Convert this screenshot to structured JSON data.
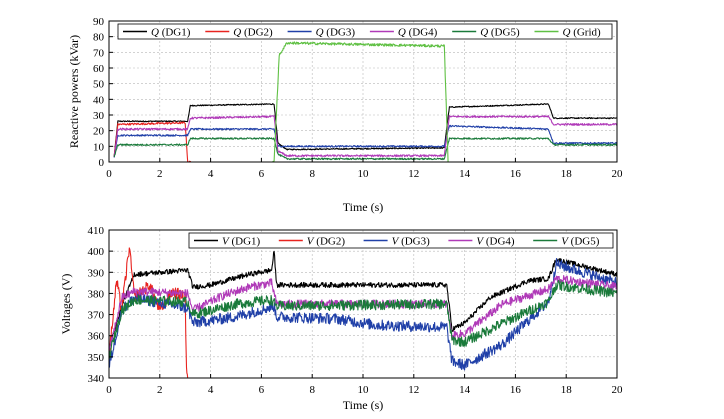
{
  "chart_data": [
    {
      "type": "line",
      "xlabel": "Time (s)",
      "ylabel": "Reactive powers (kVar)",
      "xlim": [
        0,
        20
      ],
      "ylim": [
        0,
        90
      ],
      "x_ticks": [
        0,
        2,
        4,
        6,
        8,
        10,
        12,
        14,
        16,
        18,
        20
      ],
      "y_ticks": [
        0,
        10,
        20,
        30,
        40,
        50,
        60,
        70,
        80,
        90
      ],
      "grid": true,
      "legend_position": "top",
      "series": [
        {
          "name_prefix": "Q",
          "name_suffix": "(DG1)",
          "color": "#000000",
          "points": [
            [
              0.2,
              3
            ],
            [
              0.35,
              26
            ],
            [
              3.1,
              26
            ],
            [
              3.2,
              36
            ],
            [
              6.5,
              37
            ],
            [
              6.65,
              12
            ],
            [
              7.0,
              8
            ],
            [
              13.2,
              9
            ],
            [
              13.4,
              35
            ],
            [
              17.3,
              37
            ],
            [
              17.5,
              28
            ],
            [
              20,
              28
            ]
          ]
        },
        {
          "name_prefix": "Q",
          "name_suffix": "(DG2)",
          "color": "#e8231f",
          "points": [
            [
              0.2,
              3
            ],
            [
              0.35,
              24
            ],
            [
              3.0,
              25
            ],
            [
              3.1,
              0
            ],
            [
              20,
              0
            ]
          ]
        },
        {
          "name_prefix": "Q",
          "name_suffix": "(DG3)",
          "color": "#2040a8",
          "points": [
            [
              0.2,
              3
            ],
            [
              0.35,
              17
            ],
            [
              3.1,
              17
            ],
            [
              3.2,
              21
            ],
            [
              6.5,
              21
            ],
            [
              6.65,
              10
            ],
            [
              7.0,
              10
            ],
            [
              13.2,
              10
            ],
            [
              13.4,
              23
            ],
            [
              17.3,
              21
            ],
            [
              17.5,
              12
            ],
            [
              20,
              12
            ]
          ]
        },
        {
          "name_prefix": "Q",
          "name_suffix": "(DG4)",
          "color": "#b03ab8",
          "points": [
            [
              0.2,
              3
            ],
            [
              0.35,
              21
            ],
            [
              3.1,
              21
            ],
            [
              3.2,
              28
            ],
            [
              6.5,
              29
            ],
            [
              6.65,
              7
            ],
            [
              7.0,
              4
            ],
            [
              13.2,
              4
            ],
            [
              13.4,
              29
            ],
            [
              17.3,
              29
            ],
            [
              17.5,
              24
            ],
            [
              20,
              24
            ]
          ]
        },
        {
          "name_prefix": "Q",
          "name_suffix": "(DG5)",
          "color": "#1a7a3a",
          "points": [
            [
              0.2,
              3
            ],
            [
              0.35,
              11
            ],
            [
              3.1,
              11
            ],
            [
              3.2,
              15
            ],
            [
              6.5,
              15
            ],
            [
              6.65,
              5
            ],
            [
              7.0,
              2
            ],
            [
              13.2,
              2
            ],
            [
              13.4,
              15
            ],
            [
              17.3,
              15
            ],
            [
              17.5,
              11
            ],
            [
              20,
              11
            ]
          ]
        },
        {
          "name_prefix": "Q",
          "name_suffix": "(Grid)",
          "color": "#5fc043",
          "points": [
            [
              0,
              0
            ],
            [
              6.5,
              0
            ],
            [
              6.7,
              68
            ],
            [
              7.0,
              76
            ],
            [
              13.2,
              74
            ],
            [
              13.35,
              0
            ],
            [
              20,
              0
            ]
          ]
        }
      ]
    },
    {
      "type": "line",
      "xlabel": "Time (s)",
      "ylabel": "Voltages (V)",
      "xlim": [
        0,
        20
      ],
      "ylim": [
        340,
        410
      ],
      "x_ticks": [
        0,
        2,
        4,
        6,
        8,
        10,
        12,
        14,
        16,
        18,
        20
      ],
      "y_ticks": [
        340,
        350,
        360,
        370,
        380,
        390,
        400,
        410
      ],
      "grid": true,
      "legend_position": "top",
      "series": [
        {
          "name_prefix": "V",
          "name_suffix": "(DG1)",
          "color": "#000000",
          "points": [
            [
              0,
              354
            ],
            [
              0.5,
              374
            ],
            [
              1.0,
              389
            ],
            [
              3.1,
              391
            ],
            [
              3.3,
              383
            ],
            [
              4.0,
              384
            ],
            [
              5.5,
              389
            ],
            [
              6.4,
              391
            ],
            [
              6.5,
              400
            ],
            [
              6.6,
              384
            ],
            [
              13.3,
              384
            ],
            [
              13.5,
              363
            ],
            [
              14.0,
              366
            ],
            [
              15.0,
              378
            ],
            [
              16.5,
              386
            ],
            [
              17.3,
              387
            ],
            [
              17.6,
              396
            ],
            [
              20,
              389
            ]
          ]
        },
        {
          "name_prefix": "V",
          "name_suffix": "(DG2)",
          "color": "#e8231f",
          "points": [
            [
              0,
              350
            ],
            [
              0.3,
              386
            ],
            [
              0.5,
              372
            ],
            [
              0.8,
              402
            ],
            [
              1.0,
              378
            ],
            [
              1.6,
              384
            ],
            [
              2.0,
              372
            ],
            [
              2.5,
              381
            ],
            [
              3.0,
              378
            ],
            [
              3.05,
              345
            ],
            [
              3.1,
              340
            ]
          ]
        },
        {
          "name_prefix": "V",
          "name_suffix": "(DG3)",
          "color": "#2040a8",
          "points": [
            [
              0,
              345
            ],
            [
              0.5,
              372
            ],
            [
              1.0,
              378
            ],
            [
              3.1,
              373
            ],
            [
              3.3,
              366
            ],
            [
              5.0,
              369
            ],
            [
              6.5,
              374
            ],
            [
              6.6,
              369
            ],
            [
              9.0,
              368
            ],
            [
              10.5,
              365
            ],
            [
              13.3,
              364
            ],
            [
              13.5,
              348
            ],
            [
              14.0,
              346
            ],
            [
              15.5,
              356
            ],
            [
              17.3,
              376
            ],
            [
              17.6,
              394
            ],
            [
              20,
              385
            ]
          ]
        },
        {
          "name_prefix": "V",
          "name_suffix": "(DG4)",
          "color": "#b03ab8",
          "points": [
            [
              0,
              352
            ],
            [
              0.5,
              378
            ],
            [
              1.0,
              381
            ],
            [
              3.1,
              380
            ],
            [
              3.3,
              372
            ],
            [
              4.5,
              379
            ],
            [
              5.5,
              383
            ],
            [
              6.4,
              385
            ],
            [
              6.6,
              375
            ],
            [
              13.3,
              375
            ],
            [
              13.5,
              360
            ],
            [
              14.0,
              361
            ],
            [
              15.5,
              375
            ],
            [
              17.3,
              382
            ],
            [
              17.6,
              387
            ],
            [
              20,
              383
            ]
          ]
        },
        {
          "name_prefix": "V",
          "name_suffix": "(DG5)",
          "color": "#1a7a3a",
          "points": [
            [
              0,
              350
            ],
            [
              0.5,
              372
            ],
            [
              1.0,
              377
            ],
            [
              3.1,
              376
            ],
            [
              3.3,
              370
            ],
            [
              5.0,
              375
            ],
            [
              6.4,
              377
            ],
            [
              6.6,
              374
            ],
            [
              13.3,
              375
            ],
            [
              13.5,
              358
            ],
            [
              14.0,
              357
            ],
            [
              15.5,
              366
            ],
            [
              17.3,
              376
            ],
            [
              17.6,
              384
            ],
            [
              20,
              380
            ]
          ]
        }
      ]
    }
  ]
}
